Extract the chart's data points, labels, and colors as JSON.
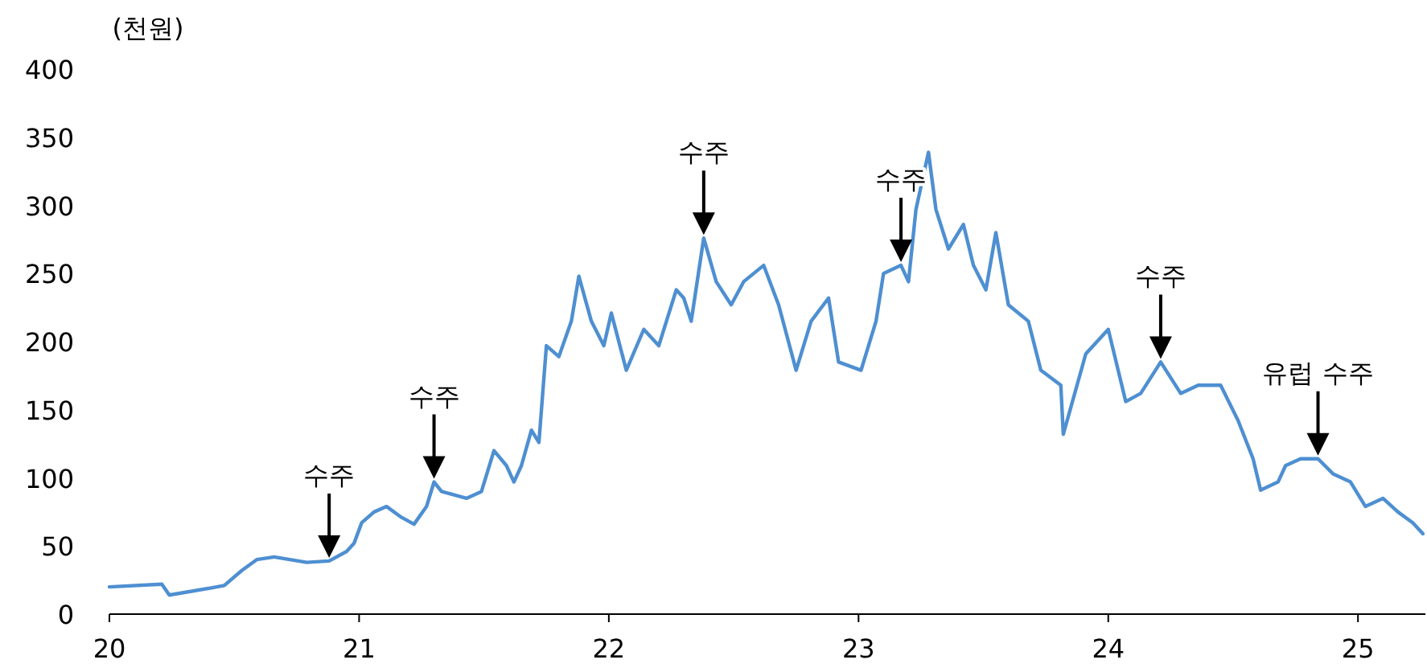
{
  "chart_data": {
    "type": "line",
    "ylabel": "(천원)",
    "x": [
      20.0,
      20.21,
      20.24,
      20.4,
      20.46,
      20.53,
      20.59,
      20.66,
      20.79,
      20.88,
      20.95,
      20.98,
      21.01,
      21.06,
      21.11,
      21.17,
      21.22,
      21.27,
      21.3,
      21.33,
      21.43,
      21.49,
      21.54,
      21.59,
      21.62,
      21.65,
      21.69,
      21.72,
      21.75,
      21.8,
      21.85,
      21.88,
      21.93,
      21.98,
      22.01,
      22.07,
      22.14,
      22.2,
      22.27,
      22.3,
      22.33,
      22.38,
      22.43,
      22.49,
      22.54,
      22.62,
      22.68,
      22.75,
      22.81,
      22.88,
      22.92,
      23.01,
      23.07,
      23.1,
      23.17,
      23.2,
      23.23,
      23.28,
      23.31,
      23.36,
      23.42,
      23.46,
      23.51,
      23.55,
      23.6,
      23.68,
      23.73,
      23.81,
      23.82,
      23.91,
      24.0,
      24.07,
      24.13,
      24.21,
      24.29,
      24.36,
      24.45,
      24.52,
      24.58,
      24.61,
      24.68,
      24.71,
      24.77,
      24.84,
      24.9,
      24.97,
      25.03,
      25.1,
      25.16,
      25.22,
      25.26
    ],
    "series": [
      {
        "color": "#4e8fd1",
        "values": [
          20,
          22,
          14,
          19,
          21,
          32,
          40,
          42,
          38,
          39,
          46,
          52,
          67,
          75,
          79,
          71,
          66,
          79,
          97,
          90,
          85,
          90,
          120,
          109,
          97,
          109,
          135,
          126,
          197,
          189,
          215,
          248,
          215,
          197,
          221,
          179,
          209,
          197,
          238,
          232,
          215,
          276,
          244,
          227,
          244,
          256,
          227,
          179,
          215,
          232,
          185,
          179,
          215,
          250,
          256,
          244,
          297,
          339,
          297,
          268,
          286,
          256,
          238,
          280,
          227,
          215,
          179,
          168,
          132,
          191,
          209,
          156,
          162,
          185,
          162,
          168,
          168,
          142,
          114,
          91,
          97,
          109,
          114,
          114,
          103,
          97,
          79,
          85,
          75,
          67,
          59
        ]
      }
    ],
    "xlim": [
      20,
      25.27
    ],
    "xticks": [
      20,
      21,
      22,
      23,
      24,
      25
    ],
    "ylim": [
      0,
      400
    ],
    "yticks": [
      0,
      50,
      100,
      150,
      200,
      250,
      300,
      350,
      400
    ],
    "annotations": [
      {
        "text": "수주",
        "x": 20.88,
        "y": 39
      },
      {
        "text": "수주",
        "x": 21.3,
        "y": 97
      },
      {
        "text": "수주",
        "x": 22.38,
        "y": 276
      },
      {
        "text": "수주",
        "x": 23.17,
        "y": 256
      },
      {
        "text": "수주",
        "x": 24.21,
        "y": 185
      },
      {
        "text": "유럽 수주",
        "x": 24.84,
        "y": 114
      }
    ]
  }
}
